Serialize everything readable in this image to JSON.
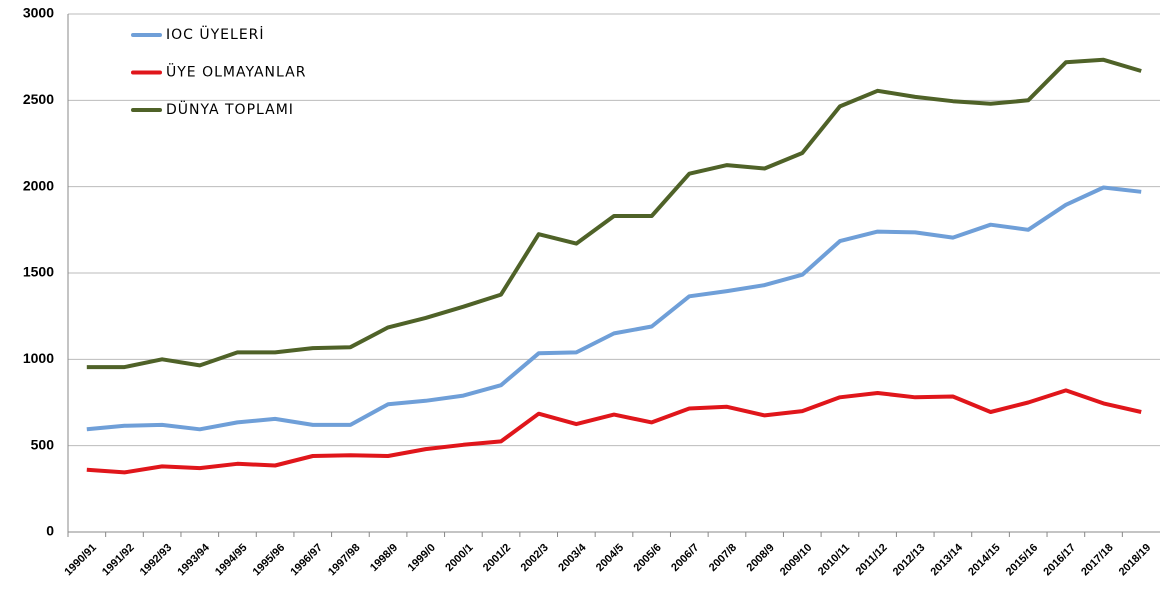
{
  "chart_data": {
    "type": "line",
    "categories": [
      "1990/91",
      "1991/92",
      "1992/93",
      "1993/94",
      "1994/95",
      "1995/96",
      "1996/97",
      "1997/98",
      "1998/9",
      "1999/0",
      "2000/1",
      "2001/2",
      "2002/3",
      "2003/4",
      "2004/5",
      "2005/6",
      "2006/7",
      "2007/8",
      "2008/9",
      "2009/10",
      "2010/11",
      "2011/12",
      "2012/13",
      "2013/14",
      "2014/15",
      "2015/16",
      "2016/17",
      "2017/18",
      "2018/19"
    ],
    "series": [
      {
        "name": "IOC ÜYELERİ",
        "color": "#6f9fd8",
        "values": [
          595,
          615,
          620,
          595,
          635,
          655,
          620,
          620,
          740,
          760,
          790,
          850,
          1035,
          1040,
          1150,
          1190,
          1365,
          1395,
          1430,
          1490,
          1685,
          1740,
          1735,
          1705,
          1780,
          1750,
          1895,
          1995,
          1970
        ]
      },
      {
        "name": "ÜYE OLMAYANLAR",
        "color": "#e0161b",
        "values": [
          360,
          345,
          380,
          370,
          395,
          385,
          440,
          445,
          440,
          480,
          505,
          525,
          685,
          625,
          680,
          635,
          715,
          725,
          675,
          700,
          780,
          805,
          780,
          785,
          695,
          750,
          820,
          745,
          695
        ]
      },
      {
        "name": "DÜNYA TOPLAMI",
        "color": "#4f6228",
        "values": [
          955,
          955,
          1000,
          965,
          1040,
          1040,
          1065,
          1070,
          1185,
          1240,
          1305,
          1375,
          1725,
          1670,
          1830,
          1830,
          2075,
          2125,
          2105,
          2195,
          2465,
          2555,
          2520,
          2495,
          2480,
          2500,
          2720,
          2735,
          2670
        ]
      }
    ],
    "ylim": [
      0,
      3000
    ],
    "yticks": [
      0,
      500,
      1000,
      1500,
      2000,
      2500,
      3000
    ],
    "grid": true,
    "legend": "upper left"
  }
}
